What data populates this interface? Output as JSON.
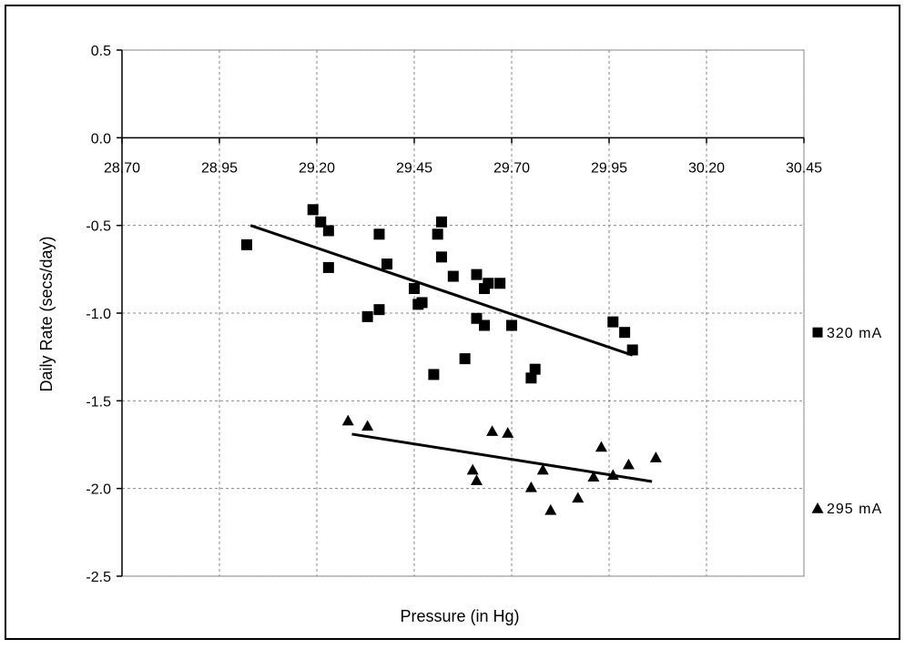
{
  "chart_data": {
    "type": "scatter",
    "title": "",
    "xlabel": "Pressure (in Hg)",
    "ylabel": "Daily Rate (secs/day)",
    "xlim": [
      28.7,
      30.45
    ],
    "ylim": [
      -2.5,
      0.5
    ],
    "x_ticks": [
      28.7,
      28.95,
      29.2,
      29.45,
      29.7,
      29.95,
      30.2,
      30.45
    ],
    "x_tick_labels": [
      "28.70",
      "28.95",
      "29.20",
      "29.45",
      "29.70",
      "29.95",
      "30.20",
      "30.45"
    ],
    "y_ticks": [
      0.5,
      0.0,
      -0.5,
      -1.0,
      -1.5,
      -2.0,
      -2.5
    ],
    "y_tick_labels": [
      "0.5",
      "0.0",
      "-0.5",
      "-1.0",
      "-1.5",
      "-2.0",
      "-2.5"
    ],
    "grid": true,
    "legend_position": "right",
    "series": [
      {
        "name": "320 mA",
        "marker": "square",
        "color": "#000000",
        "points": [
          [
            29.02,
            -0.61
          ],
          [
            29.19,
            -0.41
          ],
          [
            29.21,
            -0.48
          ],
          [
            29.23,
            -0.53
          ],
          [
            29.23,
            -0.74
          ],
          [
            29.33,
            -1.02
          ],
          [
            29.36,
            -0.55
          ],
          [
            29.36,
            -0.98
          ],
          [
            29.38,
            -0.72
          ],
          [
            29.45,
            -0.86
          ],
          [
            29.46,
            -0.95
          ],
          [
            29.47,
            -0.94
          ],
          [
            29.5,
            -1.35
          ],
          [
            29.51,
            -0.55
          ],
          [
            29.52,
            -0.48
          ],
          [
            29.52,
            -0.68
          ],
          [
            29.55,
            -0.79
          ],
          [
            29.58,
            -1.26
          ],
          [
            29.61,
            -0.78
          ],
          [
            29.61,
            -1.03
          ],
          [
            29.63,
            -0.86
          ],
          [
            29.63,
            -1.07
          ],
          [
            29.64,
            -0.83
          ],
          [
            29.67,
            -0.83
          ],
          [
            29.7,
            -1.07
          ],
          [
            29.75,
            -1.37
          ],
          [
            29.76,
            -1.32
          ],
          [
            29.96,
            -1.05
          ],
          [
            29.99,
            -1.11
          ],
          [
            30.01,
            -1.21
          ]
        ],
        "trendline": [
          [
            29.03,
            -0.5
          ],
          [
            30.01,
            -1.24
          ]
        ]
      },
      {
        "name": "295 mA",
        "marker": "triangle",
        "color": "#000000",
        "points": [
          [
            29.28,
            -1.61
          ],
          [
            29.33,
            -1.64
          ],
          [
            29.6,
            -1.89
          ],
          [
            29.61,
            -1.95
          ],
          [
            29.65,
            -1.67
          ],
          [
            29.69,
            -1.68
          ],
          [
            29.75,
            -1.99
          ],
          [
            29.78,
            -1.89
          ],
          [
            29.8,
            -2.12
          ],
          [
            29.87,
            -2.05
          ],
          [
            29.91,
            -1.93
          ],
          [
            29.93,
            -1.76
          ],
          [
            29.96,
            -1.92
          ],
          [
            30.0,
            -1.86
          ],
          [
            30.07,
            -1.82
          ]
        ],
        "trendline": [
          [
            29.29,
            -1.69
          ],
          [
            30.06,
            -1.96
          ]
        ]
      }
    ]
  }
}
